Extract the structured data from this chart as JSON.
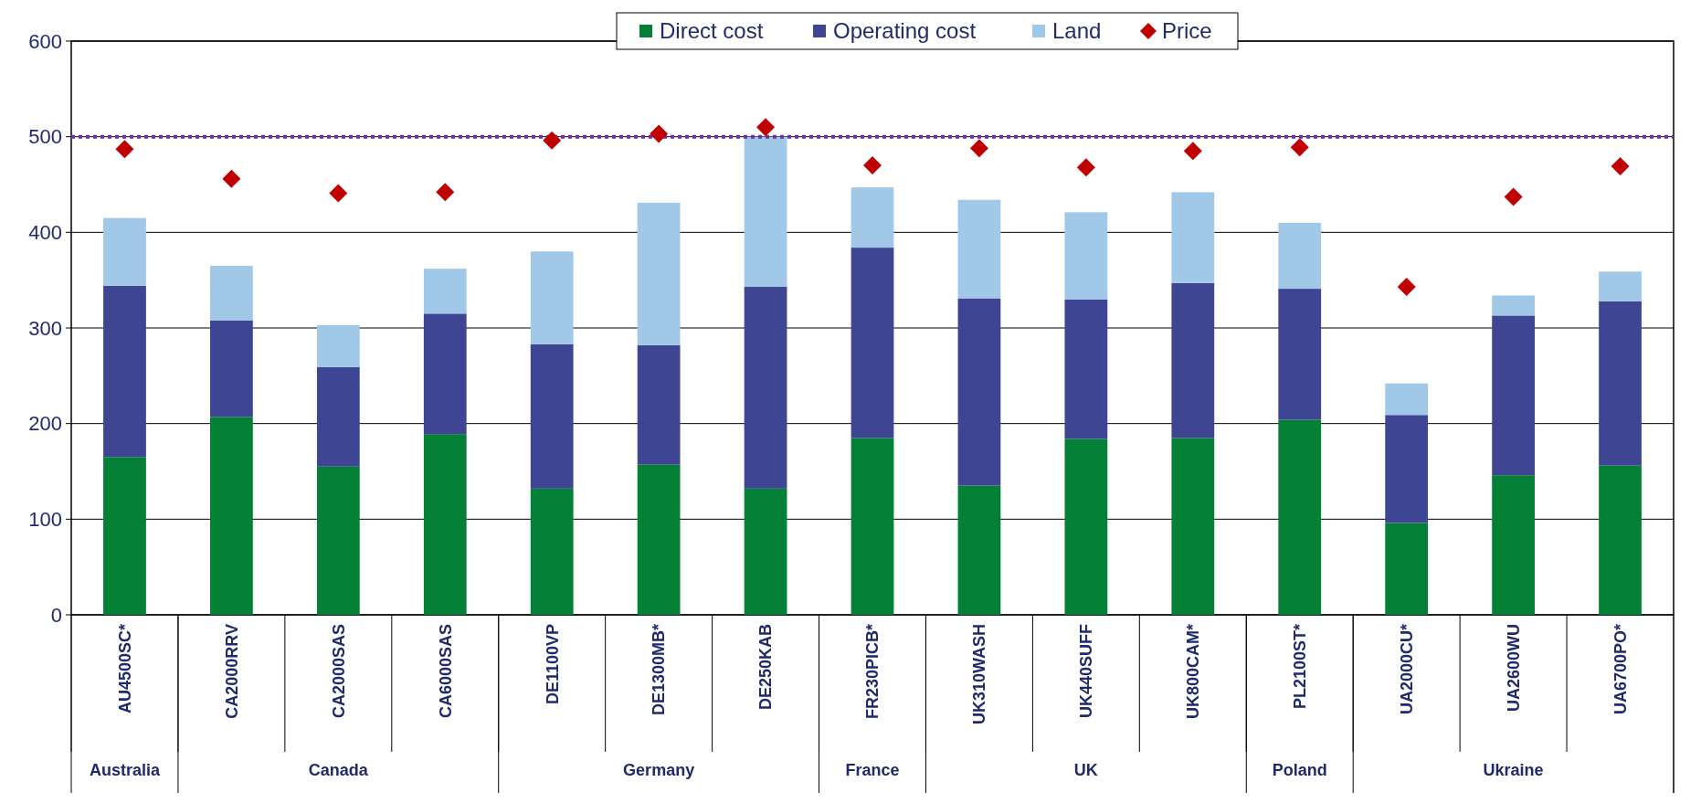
{
  "chart_data": {
    "type": "bar",
    "stacked": true,
    "categories": [
      "AU4500SC*",
      "CA2000RRV",
      "CA2000SAS",
      "CA6000SAS",
      "DE1100VP",
      "DE1300MB*",
      "DE250KAB",
      "FR230PICB*",
      "UK310WASH",
      "UK440SUFF",
      "UK800CAM*",
      "PL2100ST*",
      "UA2000CU*",
      "UA2600WU",
      "UA6700PO*"
    ],
    "series": [
      {
        "name": "Direct cost",
        "color": "#038035",
        "values": [
          165,
          207,
          155,
          189,
          132,
          157,
          132,
          185,
          135,
          184,
          185,
          204,
          96,
          146,
          156
        ]
      },
      {
        "name": "Operating cost",
        "color": "#3e4694",
        "values": [
          179,
          101,
          104,
          126,
          151,
          125,
          211,
          199,
          196,
          146,
          162,
          137,
          113,
          167,
          172
        ]
      },
      {
        "name": "Land",
        "color": "#a2c8e8",
        "values": [
          71,
          57,
          44,
          47,
          97,
          149,
          157,
          63,
          103,
          91,
          95,
          69,
          33,
          21,
          31
        ]
      },
      {
        "name": "Price",
        "type": "scatter",
        "marker": "diamond",
        "color": "#c00000",
        "x": [
          "AU4500SC*",
          "CA2000RRV",
          "CA2000SAS",
          "CA6000SAS",
          "DE1100VP",
          "DE1300MB*",
          "DE250KAB",
          "FR230PICB*",
          "UK310WASH",
          "UK440SUFF",
          "UK800CAM*",
          "PL2100ST*",
          "UA2000CU*",
          "UA2600WU",
          "UA6700PO*"
        ],
        "values": [
          487,
          456,
          441,
          442,
          496,
          503,
          510,
          470,
          488,
          468,
          485,
          489,
          343,
          437,
          469
        ]
      }
    ],
    "ylim": [
      0,
      600
    ],
    "yticks": [
      0,
      100,
      200,
      300,
      400,
      500,
      600
    ],
    "grid": "y",
    "legend": "top",
    "ref_lines": [
      {
        "axis": "y",
        "value": 500,
        "color": "#7030a0",
        "line_style": "dotted"
      }
    ],
    "annotations": [
      "Australia",
      "Canada",
      "Germany",
      "France",
      "UK",
      "Poland",
      "Ukraine"
    ]
  }
}
